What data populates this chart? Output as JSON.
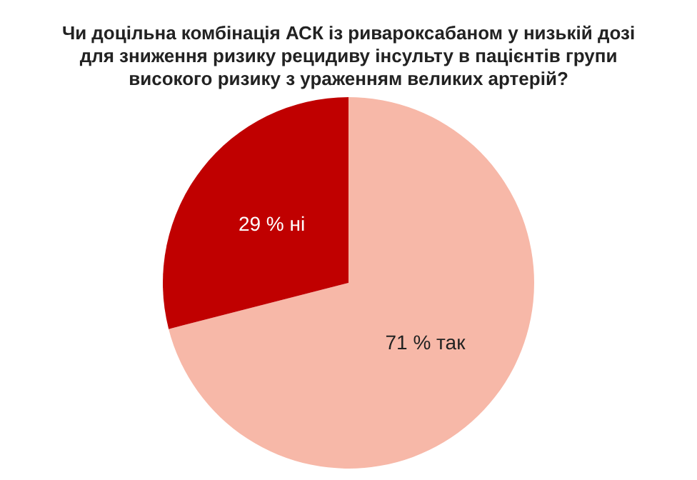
{
  "chart_data": {
    "type": "pie",
    "title": "Чи доцільна комбінація АСК із ривароксабаном у низькій дозі\nдля зниження ризику рецидиву інсульту в пацієнтів групи\nвисокого ризику з ураженням великих артерій?",
    "categories": [
      "71 % так",
      "29 % ні"
    ],
    "values": [
      71,
      29
    ],
    "colors": [
      "#f7b8a8",
      "#c00000"
    ],
    "legend": false
  }
}
